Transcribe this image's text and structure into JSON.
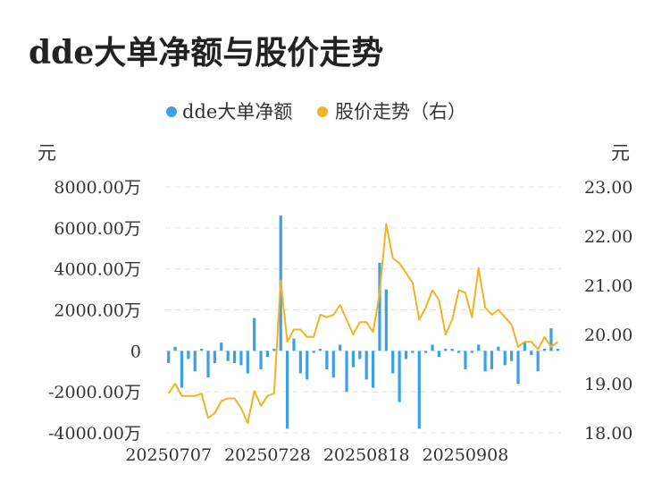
{
  "title": "dde大单净额与股价走势",
  "colors": {
    "bar": "#3ba0e8",
    "line": "#f0b323",
    "grid": "#e4e4e4"
  },
  "chart_data": {
    "type": "bar+line",
    "legend": {
      "placement": "top-center",
      "items": [
        {
          "label": "dde大单净额",
          "color": "#3ba0e8",
          "kind": "bar"
        },
        {
          "label": "股价走势（右）",
          "color": "#f0b323",
          "kind": "line"
        }
      ]
    },
    "left_unit": "元",
    "right_unit": "元",
    "left_axis": {
      "ylim": [
        -4000,
        8000
      ],
      "ticks": [
        8000,
        6000,
        4000,
        2000,
        0,
        -2000,
        -4000
      ],
      "tick_labels": [
        "8000.00万",
        "6000.00万",
        "4000.00万",
        "2000.00万",
        "0",
        "-2000.00万",
        "-4000.00万"
      ]
    },
    "right_axis": {
      "ylim": [
        18,
        23
      ],
      "ticks": [
        23,
        22,
        21,
        20,
        19,
        18
      ],
      "tick_labels": [
        "23.00",
        "22.00",
        "21.00",
        "20.00",
        "19.00",
        "18.00"
      ]
    },
    "x_tick_labels": [
      {
        "index": 0,
        "label": "20250707"
      },
      {
        "index": 15,
        "label": "20250728"
      },
      {
        "index": 30,
        "label": "20250818"
      },
      {
        "index": 45,
        "label": "20250908"
      }
    ],
    "grid": true,
    "series": [
      {
        "name": "dde大单净额",
        "type": "bar",
        "axis": "left",
        "values": [
          -600,
          200,
          -1800,
          -400,
          -1000,
          100,
          -1300,
          -600,
          400,
          -500,
          -600,
          -700,
          -1100,
          1600,
          -900,
          -300,
          100,
          6600,
          -3800,
          600,
          -1100,
          -1400,
          -100,
          100,
          -900,
          -1300,
          300,
          -2000,
          -800,
          -400,
          -1400,
          -1800,
          4300,
          3000,
          -1100,
          -2500,
          -400,
          -100,
          -3800,
          -100,
          300,
          -300,
          100,
          100,
          -100,
          -900,
          -100,
          300,
          -1000,
          -900,
          200,
          -700,
          -500,
          -1600,
          400,
          -200,
          -1000,
          100,
          1100,
          100
        ]
      },
      {
        "name": "股价走势（右）",
        "type": "line",
        "axis": "right",
        "values": [
          18.8,
          19.0,
          18.75,
          18.75,
          18.75,
          18.8,
          18.3,
          18.4,
          18.65,
          18.7,
          18.7,
          18.5,
          18.2,
          18.85,
          18.55,
          18.75,
          18.8,
          21.1,
          19.85,
          20.1,
          20.1,
          19.95,
          19.95,
          20.4,
          20.35,
          20.4,
          20.6,
          20.3,
          20.0,
          20.25,
          20.25,
          20.05,
          20.85,
          22.25,
          21.55,
          21.45,
          21.25,
          21.05,
          20.3,
          20.55,
          20.9,
          20.7,
          20.0,
          20.3,
          20.9,
          20.85,
          20.35,
          21.35,
          20.55,
          20.4,
          20.5,
          20.35,
          20.2,
          19.75,
          19.85,
          19.85,
          19.7,
          19.95,
          19.75,
          19.85
        ]
      }
    ]
  }
}
